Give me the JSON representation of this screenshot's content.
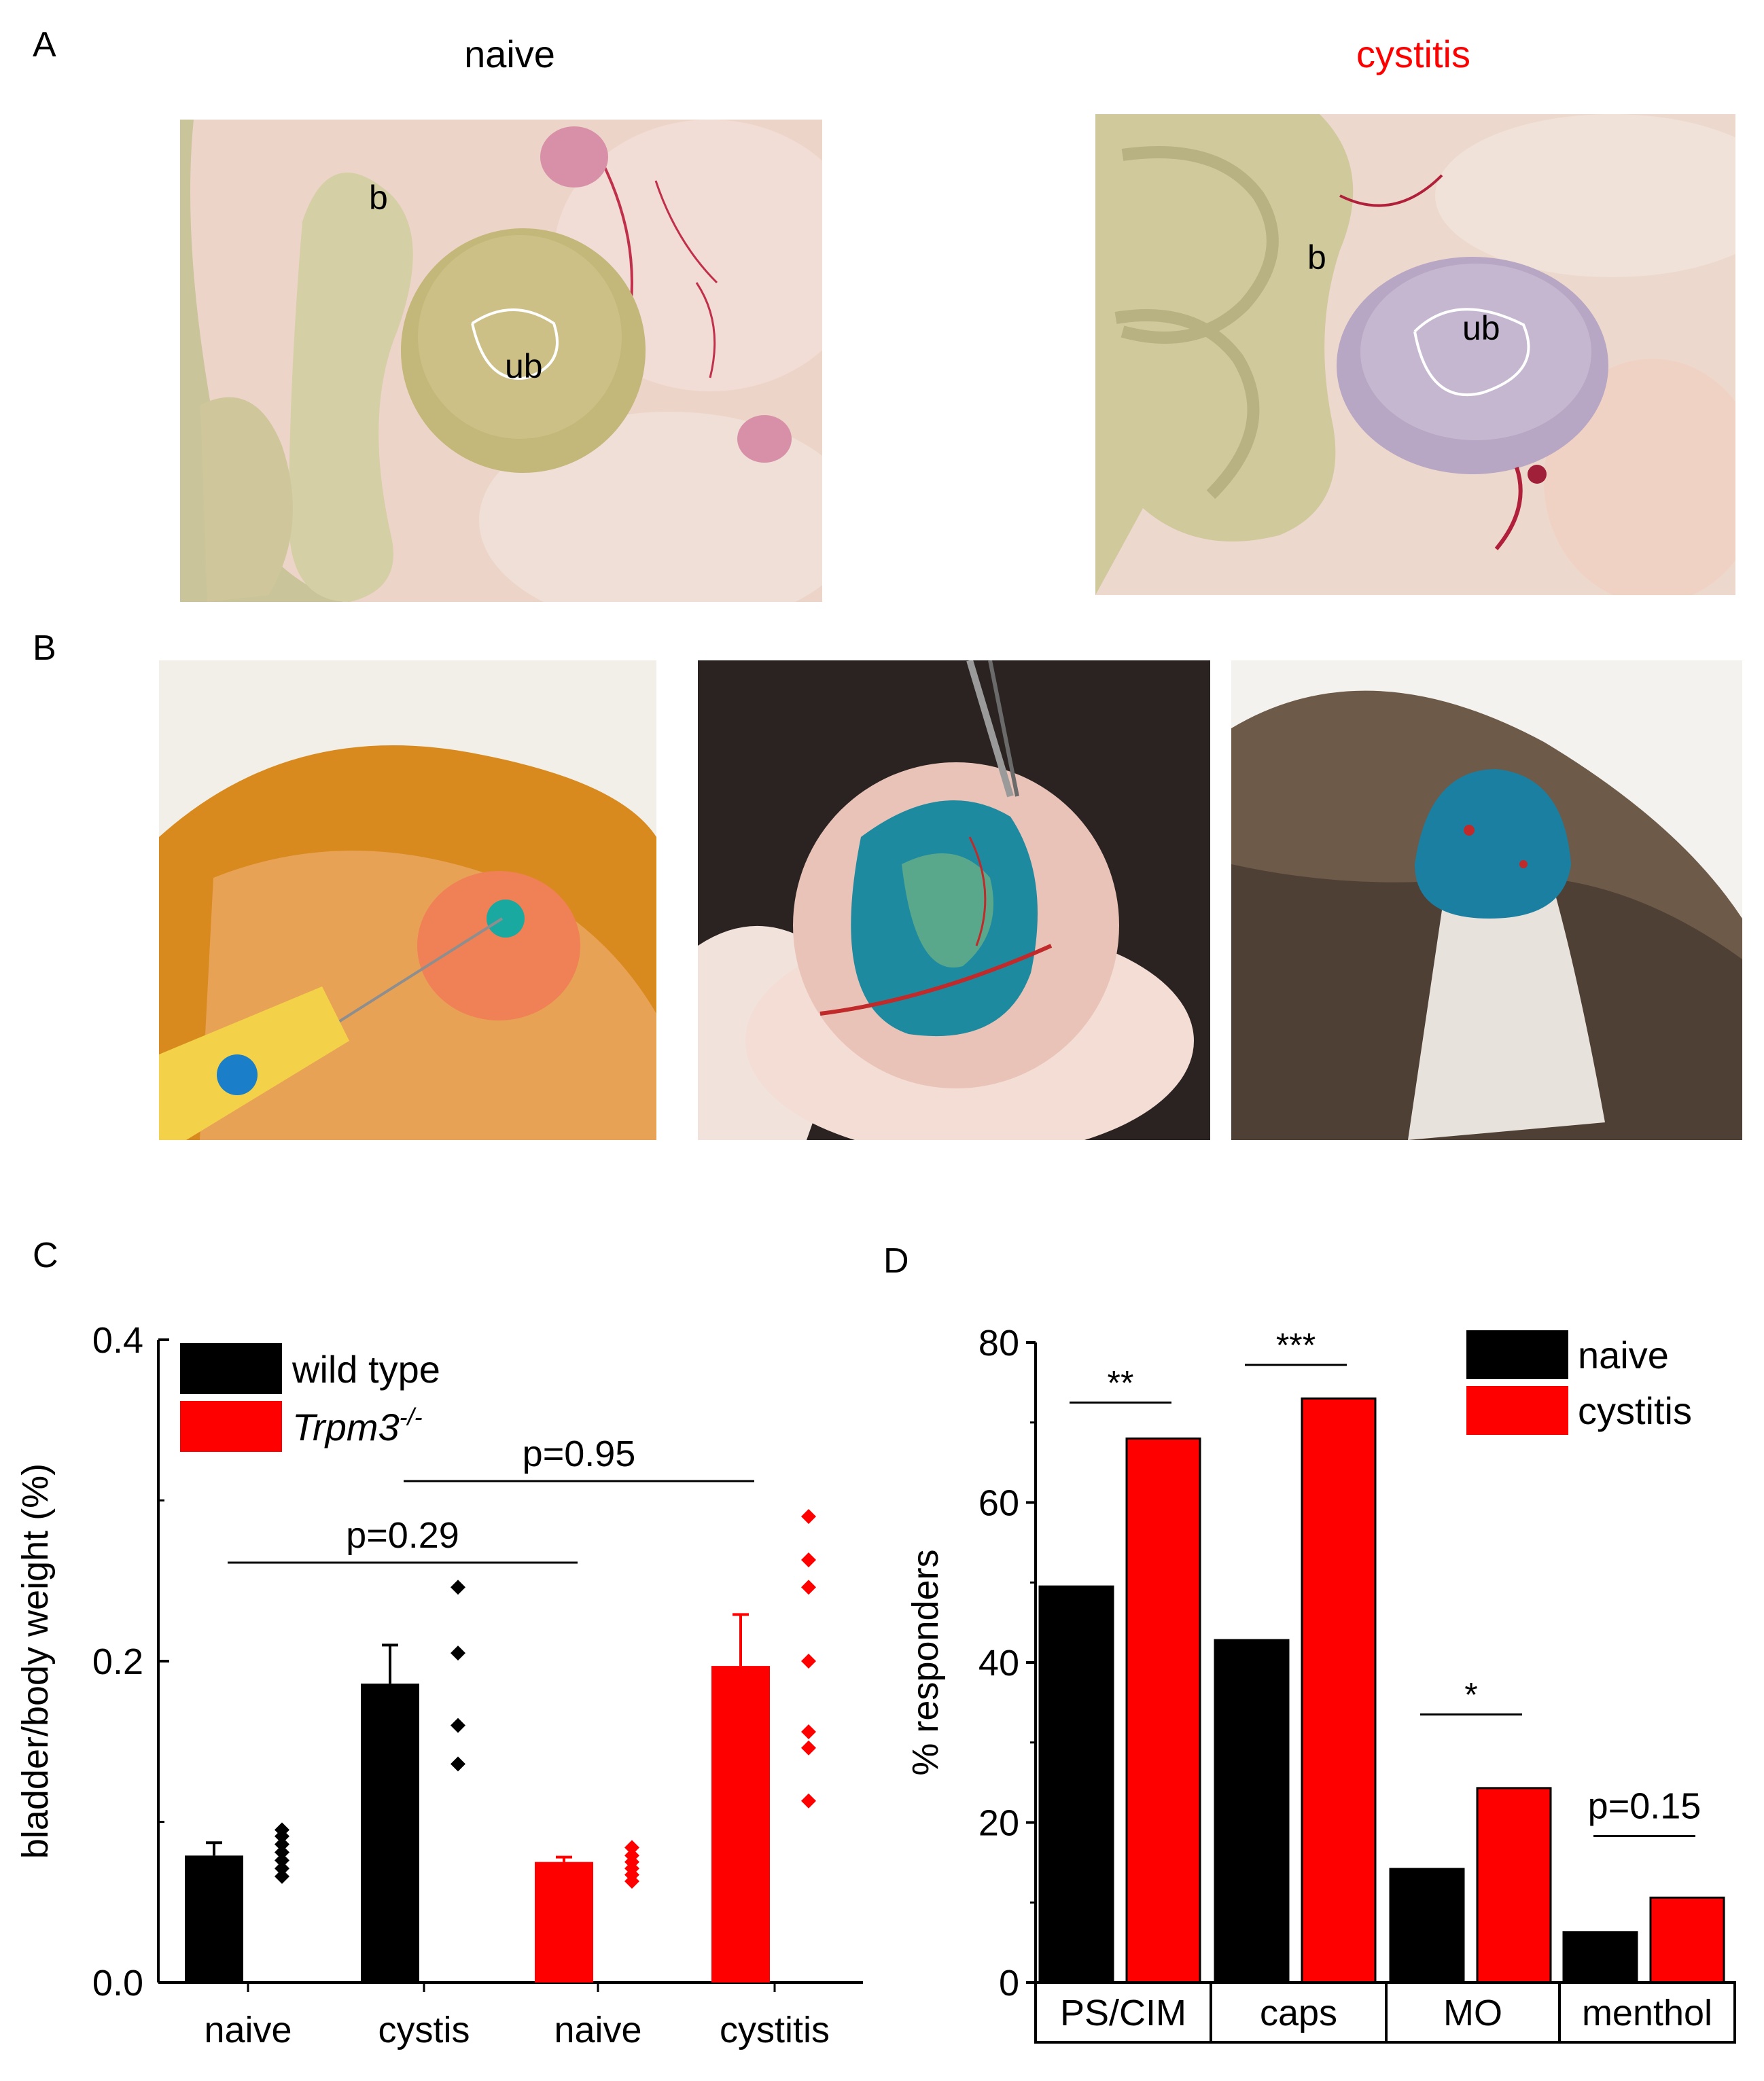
{
  "panel_a": {
    "letter": "A",
    "naive_label": "naive",
    "cystitis_label": "cystitis",
    "cystitis_color": "#ff0000",
    "naive_photo": {
      "labels": [
        "b",
        "ub"
      ]
    },
    "cystitis_photo": {
      "labels": [
        "b",
        "ub"
      ]
    }
  },
  "panel_b": {
    "letter": "B"
  },
  "panel_c": {
    "letter": "C"
  },
  "panel_d": {
    "letter": "D"
  },
  "chart_data": [
    {
      "id": "C",
      "type": "bar",
      "ylabel": "bladder/body weight (%)",
      "xlabel": "",
      "ylim": [
        0.0,
        0.4
      ],
      "yticks": [
        0.0,
        0.2,
        0.4
      ],
      "ytick_labels": [
        "0.0",
        "0.2",
        "0.4"
      ],
      "categories": [
        "naive",
        "cystis",
        "naive",
        "cystitis"
      ],
      "bar_values": [
        0.079,
        0.186,
        0.075,
        0.197
      ],
      "bar_errors": [
        0.008,
        0.024,
        0.003,
        0.032
      ],
      "bar_colors": [
        "#000000",
        "#000000",
        "#ff0000",
        "#ff0000"
      ],
      "points": [
        [
          0.066,
          0.071,
          0.076,
          0.081,
          0.086,
          0.091,
          0.095
        ],
        [
          0.136,
          0.16,
          0.205,
          0.246
        ],
        [
          0.063,
          0.067,
          0.071,
          0.075,
          0.079,
          0.084
        ],
        [
          0.113,
          0.146,
          0.156,
          0.2,
          0.246,
          0.263,
          0.29
        ]
      ],
      "legend": [
        {
          "label": "wild type",
          "color": "#000000"
        },
        {
          "label": "Trpm3",
          "sup": "-/-",
          "color": "#ff0000"
        }
      ],
      "legend_position": "top-left",
      "annotations": [
        {
          "text": "p=0.29",
          "from": 0,
          "to": 2
        },
        {
          "text": "p=0.95",
          "from": 1,
          "to": 3
        }
      ],
      "grid": false
    },
    {
      "id": "D",
      "type": "bar",
      "ylabel": "% responders",
      "xlabel": "",
      "ylim": [
        0,
        80
      ],
      "yticks": [
        0,
        20,
        40,
        60,
        80
      ],
      "ytick_labels": [
        "0",
        "20",
        "40",
        "60",
        "80"
      ],
      "categories": [
        "PS/CIM",
        "caps",
        "MO",
        "menthol"
      ],
      "series": [
        {
          "name": "naive",
          "color": "#000000",
          "values": [
            49.5,
            42.8,
            14.2,
            6.3
          ]
        },
        {
          "name": "cystitis",
          "color": "#ff0000",
          "values": [
            68.0,
            73.0,
            24.3,
            10.6
          ]
        }
      ],
      "annotations": [
        "**",
        "***",
        "*",
        "p=0.15"
      ],
      "legend_position": "top-right",
      "grid": false
    }
  ]
}
